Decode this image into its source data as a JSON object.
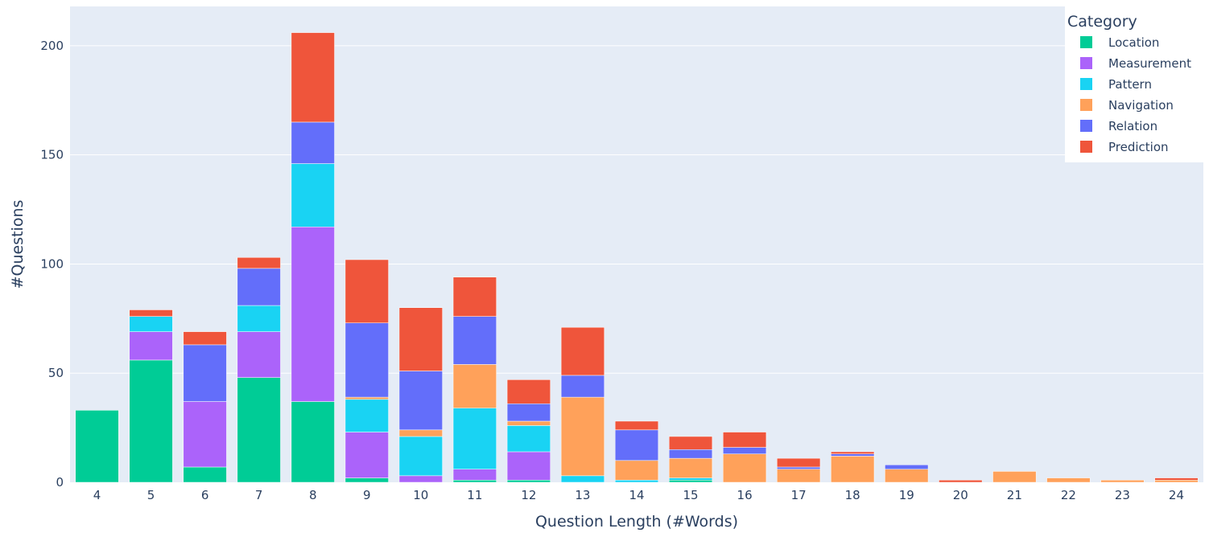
{
  "chart_data": {
    "type": "bar",
    "barmode": "stack",
    "title": "",
    "xlabel": "Question Length (#Words)",
    "ylabel": "#Questions",
    "ylim": [
      0,
      218
    ],
    "yticks": [
      0,
      50,
      100,
      150,
      200
    ],
    "grid": true,
    "legend": {
      "title": "Category",
      "position": "top-right"
    },
    "categories": [
      "4",
      "5",
      "6",
      "7",
      "8",
      "9",
      "10",
      "11",
      "12",
      "13",
      "14",
      "15",
      "16",
      "17",
      "18",
      "19",
      "20",
      "21",
      "22",
      "23",
      "24"
    ],
    "series": [
      {
        "name": "Location",
        "color": "#00cc96",
        "values": [
          33,
          56,
          7,
          48,
          37,
          2,
          0,
          1,
          1,
          0,
          0,
          1,
          0,
          0,
          0,
          0,
          0,
          0,
          0,
          0,
          0
        ]
      },
      {
        "name": "Measurement",
        "color": "#ab63fa",
        "values": [
          0,
          13,
          30,
          21,
          80,
          21,
          3,
          5,
          13,
          0,
          0,
          0,
          0,
          0,
          0,
          0,
          0,
          0,
          0,
          0,
          0
        ]
      },
      {
        "name": "Pattern",
        "color": "#19d3f3",
        "values": [
          0,
          7,
          0,
          12,
          29,
          15,
          18,
          28,
          12,
          3,
          1,
          1,
          0,
          0,
          0,
          0,
          0,
          0,
          0,
          0,
          0
        ]
      },
      {
        "name": "Navigation",
        "color": "#ffa15a",
        "values": [
          0,
          0,
          0,
          0,
          0,
          1,
          3,
          20,
          2,
          36,
          9,
          9,
          13,
          6,
          12,
          6,
          0,
          5,
          2,
          1,
          1
        ]
      },
      {
        "name": "Relation",
        "color": "#636efa",
        "values": [
          0,
          0,
          26,
          17,
          19,
          34,
          27,
          22,
          8,
          10,
          14,
          4,
          3,
          1,
          1,
          2,
          0,
          0,
          0,
          0,
          0
        ]
      },
      {
        "name": "Prediction",
        "color": "#ef553b",
        "values": [
          0,
          3,
          6,
          5,
          41,
          29,
          29,
          18,
          11,
          22,
          4,
          6,
          7,
          4,
          1,
          0,
          1,
          0,
          0,
          0,
          1
        ]
      }
    ]
  }
}
